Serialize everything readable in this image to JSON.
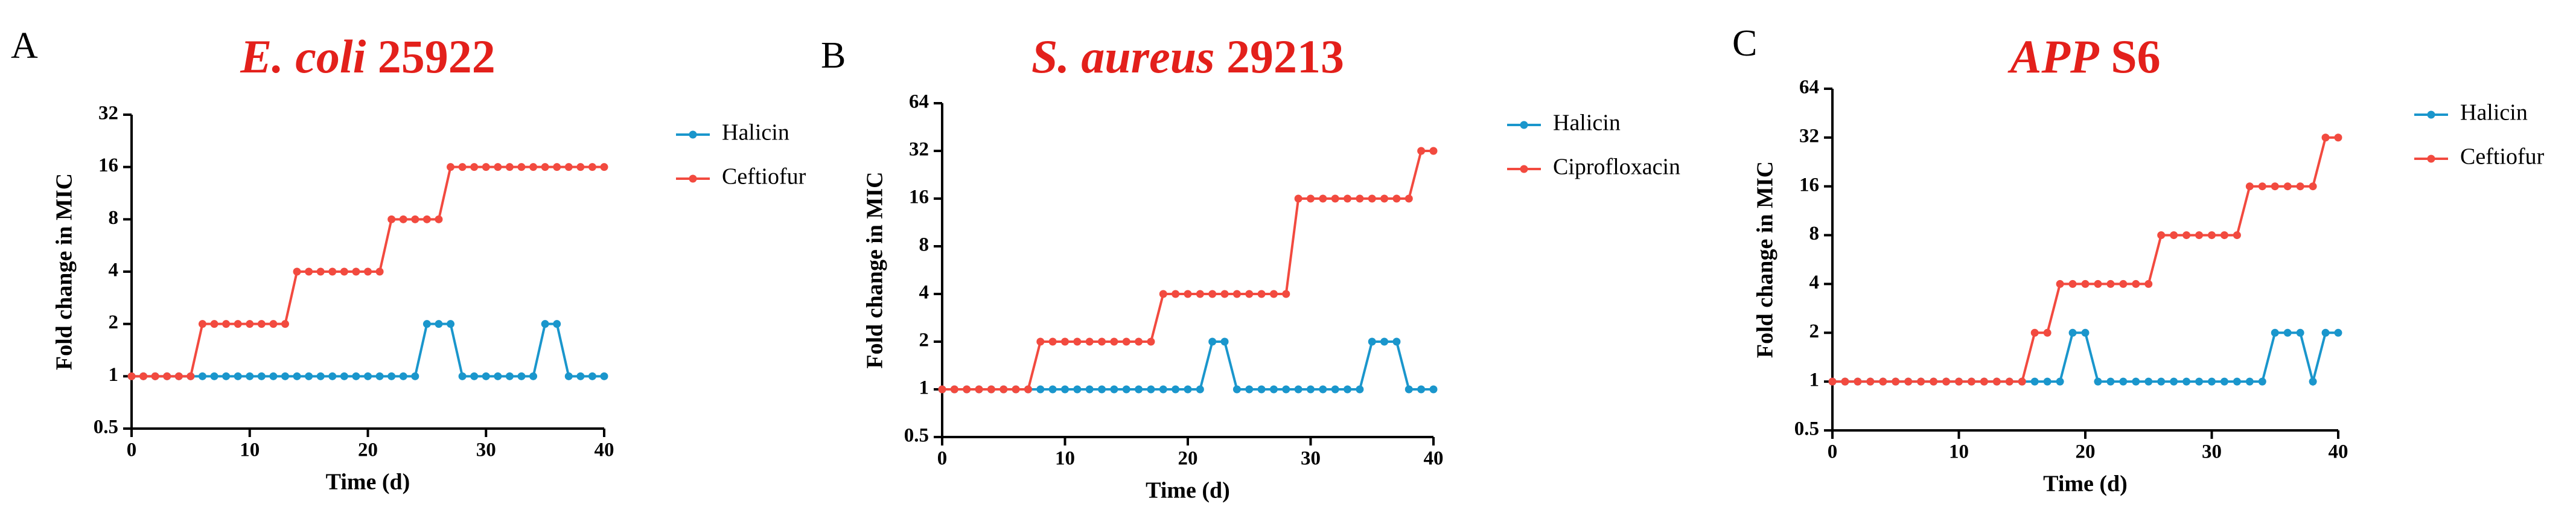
{
  "chart_data": [
    {
      "type": "line",
      "panel_label": "A",
      "title": "E. coli 25922",
      "title_italic": "E. coli",
      "x_label": "Time (d)",
      "y_label": "Fold change in MIC",
      "yscale": "log2",
      "grid": false,
      "legend": "right",
      "x": [
        0,
        1,
        2,
        3,
        4,
        5,
        6,
        7,
        8,
        9,
        10,
        11,
        12,
        13,
        14,
        15,
        16,
        17,
        18,
        19,
        20,
        21,
        22,
        23,
        24,
        25,
        26,
        27,
        28,
        29,
        30,
        31,
        32,
        33,
        34,
        35,
        36,
        37,
        38,
        39,
        40
      ],
      "xlim": [
        0,
        40
      ],
      "xticks": [
        0,
        10,
        20,
        30,
        40
      ],
      "ylim": [
        0.5,
        32
      ],
      "yticks": [
        0.5,
        1,
        2,
        4,
        8,
        16,
        32
      ],
      "series": [
        {
          "name": "Halicin",
          "color": "#1a96cc",
          "values": [
            1,
            1,
            1,
            1,
            1,
            1,
            1,
            1,
            1,
            1,
            1,
            1,
            1,
            1,
            1,
            1,
            1,
            1,
            1,
            1,
            1,
            1,
            1,
            1,
            1,
            2,
            2,
            2,
            1,
            1,
            1,
            1,
            1,
            1,
            1,
            2,
            2,
            1,
            1,
            1,
            1
          ]
        },
        {
          "name": "Ceftiofur",
          "color": "#f24a3f",
          "values": [
            1,
            1,
            1,
            1,
            1,
            1,
            2,
            2,
            2,
            2,
            2,
            2,
            2,
            2,
            4,
            4,
            4,
            4,
            4,
            4,
            4,
            4,
            8,
            8,
            8,
            8,
            8,
            16,
            16,
            16,
            16,
            16,
            16,
            16,
            16,
            16,
            16,
            16,
            16,
            16,
            16
          ]
        }
      ]
    },
    {
      "type": "line",
      "panel_label": "B",
      "title": "S. aureus 29213",
      "title_italic": "S. aureus",
      "x_label": "Time (d)",
      "y_label": "Fold change in MIC",
      "yscale": "log2",
      "grid": false,
      "legend": "right",
      "x": [
        0,
        1,
        2,
        3,
        4,
        5,
        6,
        7,
        8,
        9,
        10,
        11,
        12,
        13,
        14,
        15,
        16,
        17,
        18,
        19,
        20,
        21,
        22,
        23,
        24,
        25,
        26,
        27,
        28,
        29,
        30,
        31,
        32,
        33,
        34,
        35,
        36,
        37,
        38,
        39,
        40
      ],
      "xlim": [
        0,
        40
      ],
      "xticks": [
        0,
        10,
        20,
        30,
        40
      ],
      "ylim": [
        0.5,
        64
      ],
      "yticks": [
        0.5,
        1,
        2,
        4,
        8,
        16,
        32,
        64
      ],
      "series": [
        {
          "name": "Halicin",
          "color": "#1a96cc",
          "values": [
            1,
            1,
            1,
            1,
            1,
            1,
            1,
            1,
            1,
            1,
            1,
            1,
            1,
            1,
            1,
            1,
            1,
            1,
            1,
            1,
            1,
            1,
            2,
            2,
            1,
            1,
            1,
            1,
            1,
            1,
            1,
            1,
            1,
            1,
            1,
            2,
            2,
            2,
            1,
            1,
            1
          ]
        },
        {
          "name": "Ciprofloxacin",
          "color": "#f24a3f",
          "values": [
            1,
            1,
            1,
            1,
            1,
            1,
            1,
            1,
            2,
            2,
            2,
            2,
            2,
            2,
            2,
            2,
            2,
            2,
            4,
            4,
            4,
            4,
            4,
            4,
            4,
            4,
            4,
            4,
            4,
            16,
            16,
            16,
            16,
            16,
            16,
            16,
            16,
            16,
            16,
            32,
            32
          ]
        }
      ]
    },
    {
      "type": "line",
      "panel_label": "C",
      "title": "APP S6",
      "title_italic": "APP",
      "x_label": "Time (d)",
      "y_label": "Fold change in MIC",
      "yscale": "log2",
      "grid": false,
      "legend": "right",
      "x": [
        0,
        1,
        2,
        3,
        4,
        5,
        6,
        7,
        8,
        9,
        10,
        11,
        12,
        13,
        14,
        15,
        16,
        17,
        18,
        19,
        20,
        21,
        22,
        23,
        24,
        25,
        26,
        27,
        28,
        29,
        30,
        31,
        32,
        33,
        34,
        35,
        36,
        37,
        38,
        39,
        40
      ],
      "xlim": [
        0,
        40
      ],
      "xticks": [
        0,
        10,
        20,
        30,
        40
      ],
      "ylim": [
        0.5,
        64
      ],
      "yticks": [
        0.5,
        1,
        2,
        4,
        8,
        16,
        32,
        64
      ],
      "series": [
        {
          "name": "Halicin",
          "color": "#1a96cc",
          "values": [
            1,
            1,
            1,
            1,
            1,
            1,
            1,
            1,
            1,
            1,
            1,
            1,
            1,
            1,
            1,
            1,
            1,
            1,
            1,
            2,
            2,
            1,
            1,
            1,
            1,
            1,
            1,
            1,
            1,
            1,
            1,
            1,
            1,
            1,
            1,
            2,
            2,
            2,
            1,
            2,
            2
          ]
        },
        {
          "name": "Ceftiofur",
          "color": "#f24a3f",
          "values": [
            1,
            1,
            1,
            1,
            1,
            1,
            1,
            1,
            1,
            1,
            1,
            1,
            1,
            1,
            1,
            1,
            2,
            2,
            4,
            4,
            4,
            4,
            4,
            4,
            4,
            4,
            8,
            8,
            8,
            8,
            8,
            8,
            8,
            16,
            16,
            16,
            16,
            16,
            16,
            32,
            32
          ]
        }
      ]
    }
  ]
}
